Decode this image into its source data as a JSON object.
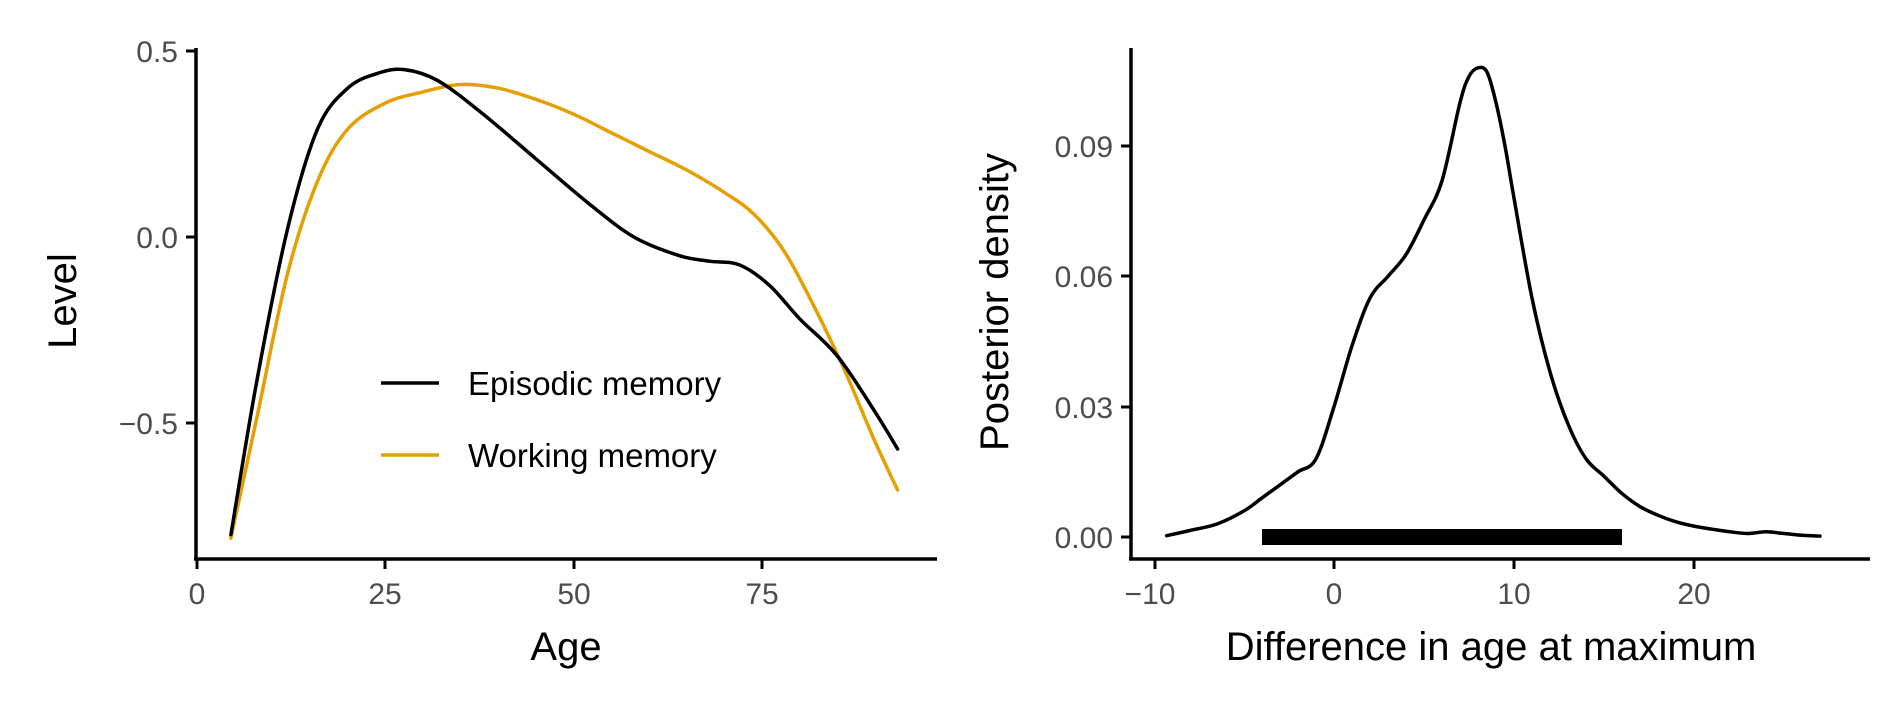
{
  "chart_data": [
    {
      "type": "line",
      "title": "",
      "xlabel": "Age",
      "ylabel": "Level",
      "xlim": [
        0,
        98
      ],
      "ylim": [
        -0.87,
        0.51
      ],
      "xticks": [
        0,
        25,
        50,
        75
      ],
      "xtick_labels": [
        "0",
        "25",
        "50",
        "75"
      ],
      "yticks": [
        0.5,
        0.0,
        -0.5
      ],
      "ytick_labels": [
        "0.5",
        "0.0",
        "−0.5"
      ],
      "grid": false,
      "legend": "inside-bottom-center",
      "series": [
        {
          "name": "Episodic memory",
          "color": "#000000",
          "x": [
            4.5,
            8,
            12,
            16,
            20,
            24,
            27.5,
            32,
            38,
            45,
            52,
            58,
            64,
            68,
            72,
            76,
            80,
            85,
            90,
            93
          ],
          "y": [
            -0.8,
            -0.38,
            0.02,
            0.29,
            0.4,
            0.44,
            0.45,
            0.42,
            0.33,
            0.21,
            0.09,
            0.0,
            -0.05,
            -0.065,
            -0.075,
            -0.13,
            -0.22,
            -0.32,
            -0.47,
            -0.57
          ]
        },
        {
          "name": "Working memory",
          "color": "#E69F00",
          "x": [
            4.5,
            8,
            12,
            16,
            20,
            25,
            30,
            35,
            40,
            45,
            50,
            55,
            60,
            65,
            70,
            74,
            78,
            82,
            86,
            90,
            93
          ],
          "y": [
            -0.81,
            -0.48,
            -0.1,
            0.15,
            0.29,
            0.36,
            0.39,
            0.41,
            0.4,
            0.37,
            0.33,
            0.28,
            0.23,
            0.18,
            0.12,
            0.06,
            -0.04,
            -0.19,
            -0.36,
            -0.55,
            -0.68
          ]
        }
      ]
    },
    {
      "type": "area",
      "title": "",
      "xlabel": "Difference in age at maximum",
      "ylabel": "Posterior density",
      "xlim": [
        -10.5,
        28.5
      ],
      "ylim": [
        -0.006,
        0.112
      ],
      "xticks": [
        -10,
        0,
        10,
        20
      ],
      "xtick_labels": [
        "−10",
        "0",
        "10",
        "20"
      ],
      "yticks": [
        0.0,
        0.03,
        0.06,
        0.09
      ],
      "ytick_labels": [
        "0.00",
        "0.03",
        "0.06",
        "0.09"
      ],
      "grid": false,
      "series": [
        {
          "name": "",
          "color": "#000000",
          "x": [
            -9.3,
            -8,
            -6.5,
            -5,
            -4,
            -3,
            -2,
            -1,
            0,
            1,
            2,
            3,
            4,
            5,
            6,
            7,
            7.5,
            8,
            8.5,
            9,
            9.5,
            10,
            11,
            12,
            13,
            14,
            15,
            16,
            17,
            18,
            19,
            20,
            21,
            22,
            23,
            24,
            25,
            26,
            27
          ],
          "y": [
            0.0003,
            0.0015,
            0.003,
            0.006,
            0.009,
            0.012,
            0.015,
            0.018,
            0.03,
            0.044,
            0.055,
            0.06,
            0.065,
            0.073,
            0.082,
            0.1,
            0.106,
            0.108,
            0.107,
            0.1,
            0.09,
            0.078,
            0.055,
            0.038,
            0.026,
            0.018,
            0.014,
            0.01,
            0.007,
            0.005,
            0.0035,
            0.0025,
            0.0018,
            0.0012,
            0.0008,
            0.0012,
            0.0008,
            0.0004,
            0.0002
          ]
        }
      ],
      "interval": {
        "lower": -4,
        "upper": 16,
        "color": "#000000"
      }
    }
  ]
}
